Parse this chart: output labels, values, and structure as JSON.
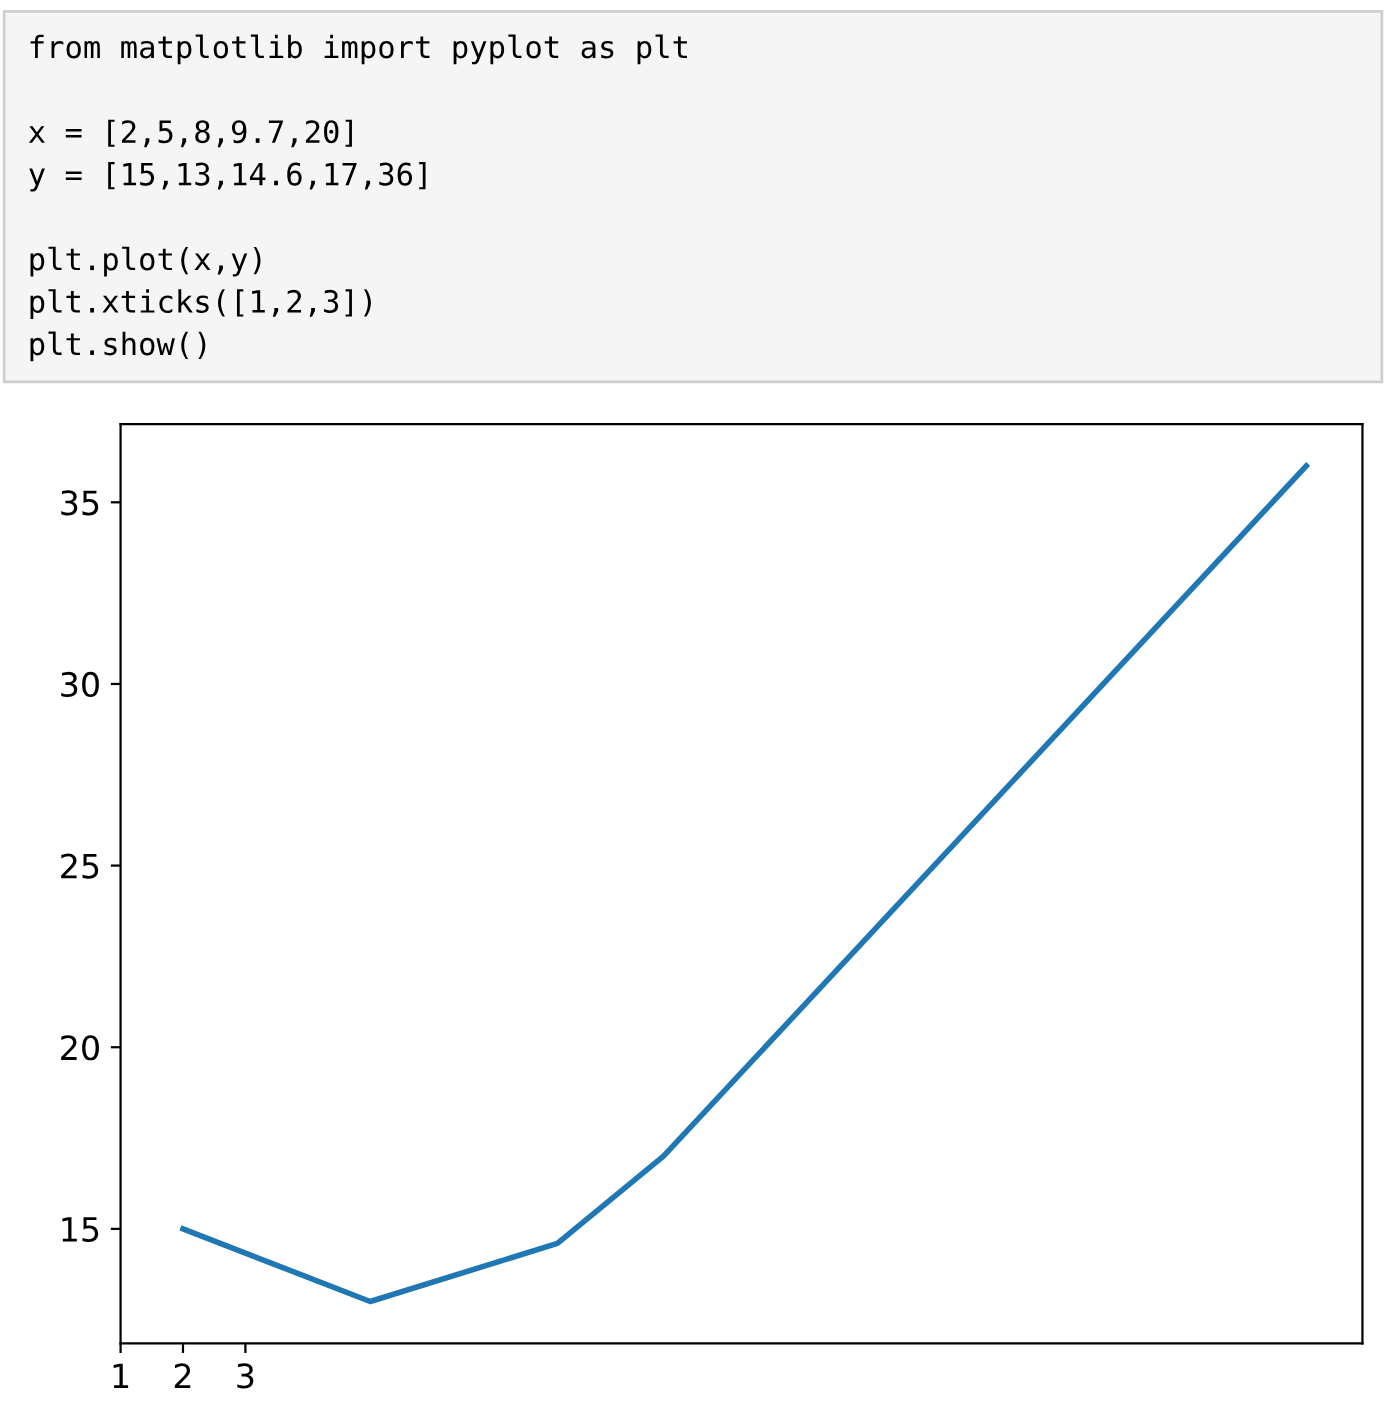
{
  "chart_data": {
    "type": "line",
    "annotations": [
      "from matplotlib import pyplot as plt",
      "x = [2,5,8,9.7,20]",
      "y = [15,13,14.6,17,36]",
      "plt.plot(x,y)",
      "plt.xticks([1,2,3])",
      "plt.show()"
    ],
    "x": [
      2,
      5,
      8,
      9.7,
      20
    ],
    "series": [
      {
        "color": "#1f77b4",
        "values": [
          15,
          13,
          14.6,
          17,
          36
        ]
      }
    ],
    "xlim": [
      1,
      20.9
    ],
    "ylim": [
      11.85,
      37.15
    ],
    "xticks": [
      1,
      2,
      3
    ],
    "yticks": [
      15,
      20,
      25,
      30,
      35
    ],
    "grid": false,
    "legend": false
  }
}
